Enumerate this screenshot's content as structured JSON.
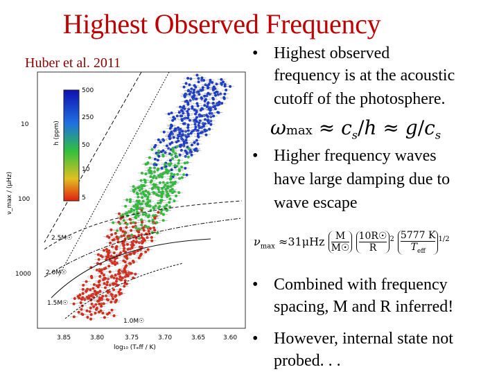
{
  "slide": {
    "title": "Highest Observed Frequency",
    "citation": "Huber et al. 2011",
    "bullets": [
      {
        "lines": [
          "Highest observed",
          "frequency is at the acoustic",
          "cutoff of the photosphere."
        ]
      },
      {
        "lines": [
          "Higher frequency waves",
          "have large damping due to",
          "wave escape"
        ]
      },
      {
        "lines": [
          "Combined with frequency",
          "spacing, M and R inferred!"
        ]
      },
      {
        "lines": [
          "However, internal state not",
          "probed. . ."
        ]
      }
    ],
    "equation1": {
      "omega": "ω",
      "sub": "max",
      "approx": "≈",
      "cs": "c",
      "cs_sub": "s",
      "slash": "/",
      "h": "h",
      "g": "g"
    },
    "equation2": {
      "nu": "ν",
      "nu_sub": "max",
      "approx": "≈",
      "coef": "31μHz",
      "M": "M",
      "Msun": "M☉",
      "R10": "10R☉",
      "R": "R",
      "T": "5777 K",
      "Teff": "T",
      "Teff_sub": "eff",
      "exp2": "2",
      "exp12": "1/2"
    }
  },
  "chart_data": {
    "type": "scatter",
    "xlabel": "log₁₀ (Tₑff / K)",
    "ylabel": "ν_max / (μHz)",
    "x_ticks": [
      "3.85",
      "3.80",
      "3.75",
      "3.70",
      "3.65",
      "3.60"
    ],
    "y_ticks": [
      "10",
      "100",
      "1000"
    ],
    "colorbar": {
      "label": "h (ppm)",
      "ticks": [
        "500",
        "250",
        "50",
        "10",
        "5"
      ]
    },
    "track_labels": [
      "2.5M☉",
      "2.0M☉",
      "1.5M☉",
      "1.0M☉"
    ],
    "colors": {
      "high": "#1a3cc8",
      "mid": "#2dbb3a",
      "low": "#d62a1a"
    }
  }
}
